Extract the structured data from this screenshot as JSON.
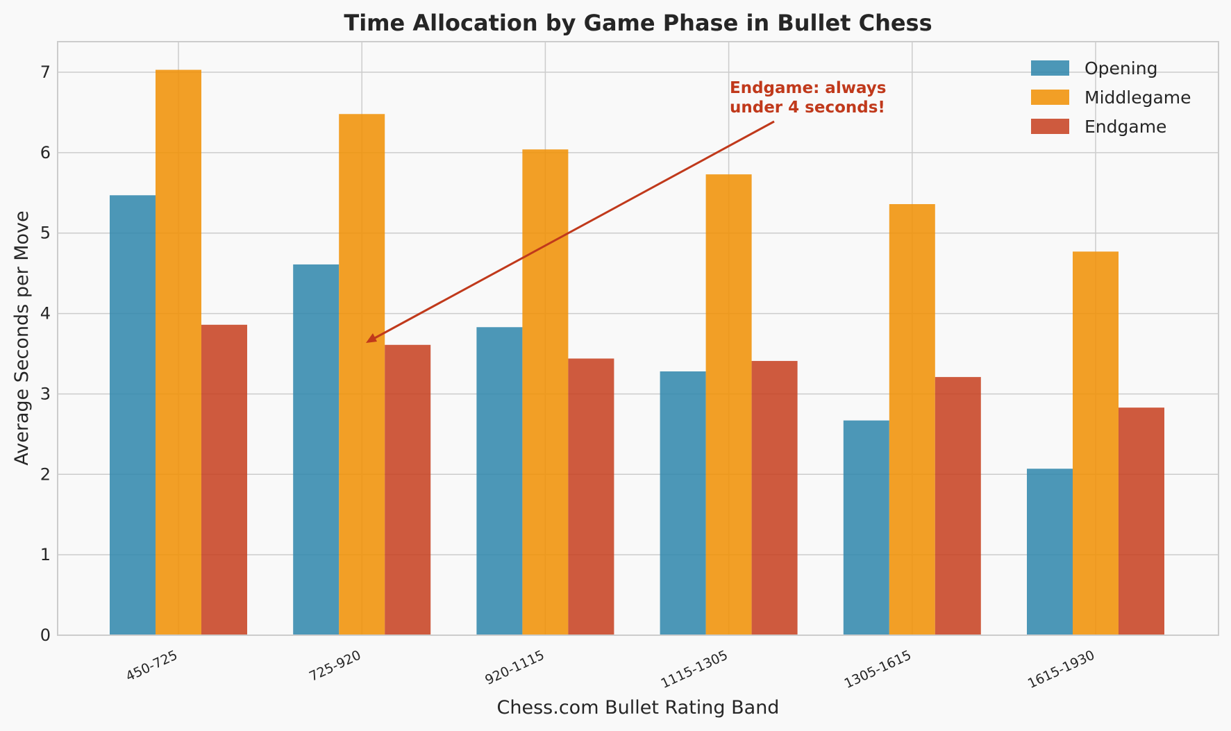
{
  "chart_data": {
    "type": "bar",
    "title": "Time Allocation by Game Phase in Bullet Chess",
    "xlabel": "Chess.com Bullet Rating Band",
    "ylabel": "Average Seconds per Move",
    "categories": [
      "450-725",
      "725-920",
      "920-1115",
      "1115-1305",
      "1305-1615",
      "1615-1930"
    ],
    "series": [
      {
        "name": "Opening",
        "color": "#2e86ab",
        "values": [
          5.47,
          4.61,
          3.83,
          3.28,
          2.67,
          2.07
        ]
      },
      {
        "name": "Middlegame",
        "color": "#f18f01",
        "values": [
          7.03,
          6.48,
          6.04,
          5.73,
          5.36,
          4.77
        ]
      },
      {
        "name": "Endgame",
        "color": "#c73e1d",
        "values": [
          3.86,
          3.61,
          3.44,
          3.41,
          3.21,
          2.83
        ]
      }
    ],
    "ylim": [
      0,
      7.38
    ],
    "yticks": [
      "0",
      "1",
      "2",
      "3",
      "4",
      "5",
      "6",
      "7"
    ],
    "grid": true,
    "legend_position": "top-right",
    "annotation": {
      "lines": [
        "Endgame: always",
        "under 4 seconds!"
      ],
      "color": "#c73e1d",
      "target_category": "725-920",
      "target_value": 3.61
    }
  }
}
